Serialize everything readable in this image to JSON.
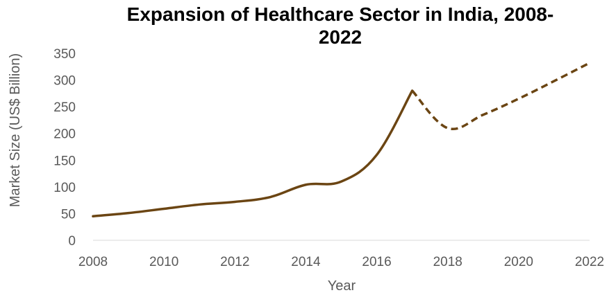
{
  "chart_data": {
    "type": "line",
    "title_lines": [
      "Expansion of Healthcare Sector in India, 2008-",
      "2022"
    ],
    "xlabel": "Year",
    "ylabel": "Market Size (US$ Billion)",
    "xlim": [
      2008,
      2022
    ],
    "ylim": [
      0,
      350
    ],
    "x_ticks": [
      "2008",
      "2010",
      "2012",
      "2014",
      "2016",
      "2018",
      "2020",
      "2022"
    ],
    "y_ticks": [
      "0",
      "50",
      "100",
      "150",
      "200",
      "250",
      "300",
      "350"
    ],
    "grid": false,
    "legend": "none",
    "series": [
      {
        "actual": {
          "x": [
            2008,
            2009,
            2010,
            2011,
            2012,
            2013,
            2014,
            2015,
            2016,
            2017
          ],
          "values": [
            45,
            51,
            59,
            67,
            72,
            81,
            104,
            110,
            160,
            280
          ]
        },
        "forecast": {
          "x": [
            2017,
            2018,
            2019,
            2020,
            2021,
            2022
          ],
          "values": [
            280,
            210,
            235,
            265,
            298,
            332
          ]
        },
        "color": "#6B4513"
      }
    ]
  }
}
